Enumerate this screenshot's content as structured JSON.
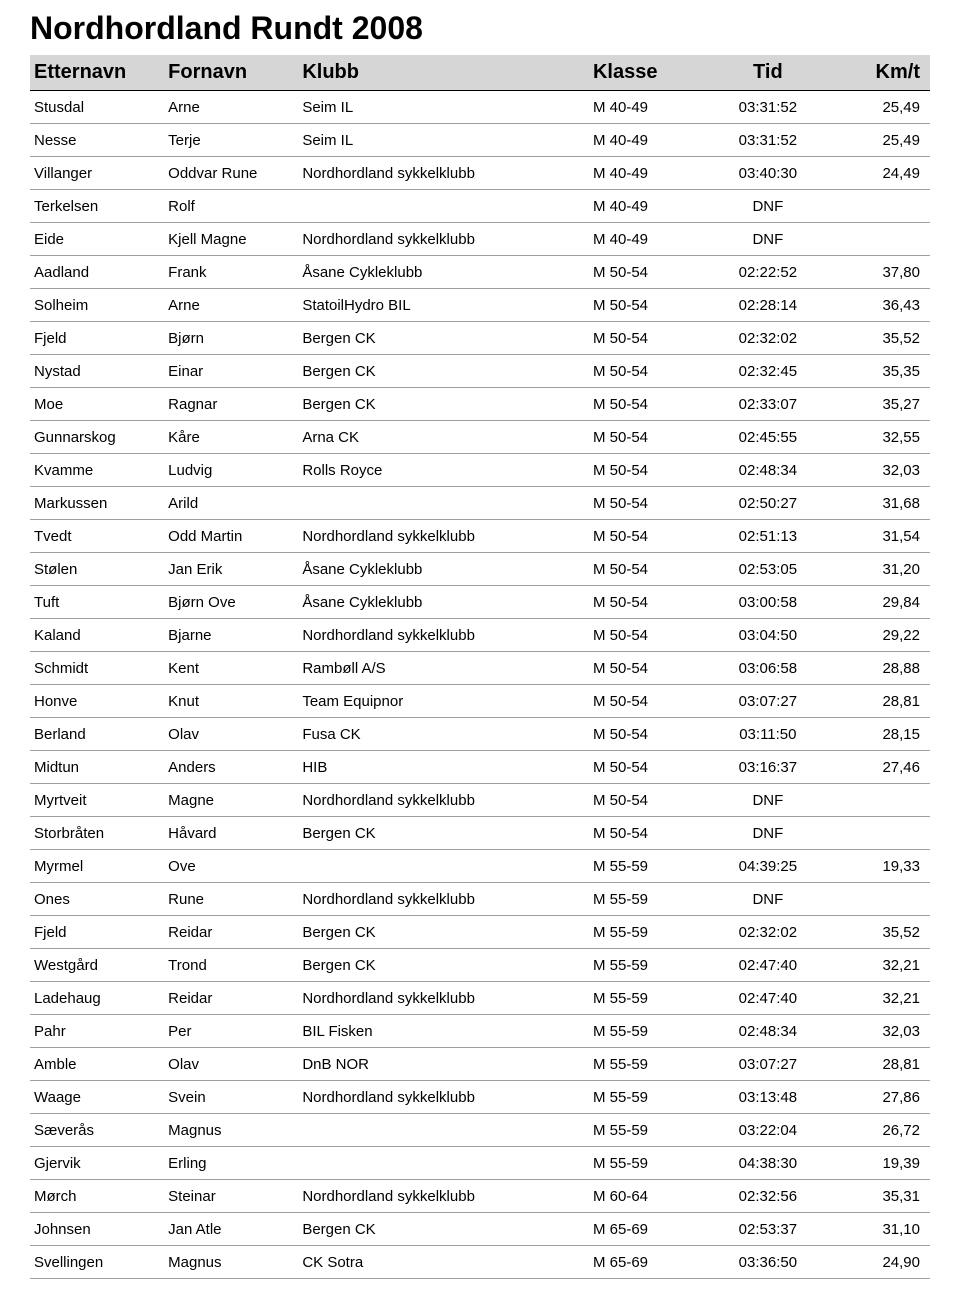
{
  "title": "Nordhordland Rundt 2008",
  "columns": [
    "Etternavn",
    "Fornavn",
    "Klubb",
    "Klasse",
    "Tid",
    "Km/t"
  ],
  "col_align": [
    "left",
    "left",
    "left",
    "left",
    "center",
    "right"
  ],
  "header_bg": "#d6d6d6",
  "row_border": "#a0a0a0",
  "rows": [
    [
      "Stusdal",
      "Arne",
      "Seim IL",
      "M 40-49",
      "03:31:52",
      "25,49"
    ],
    [
      "Nesse",
      "Terje",
      "Seim IL",
      "M 40-49",
      "03:31:52",
      "25,49"
    ],
    [
      "Villanger",
      "Oddvar Rune",
      "Nordhordland sykkelklubb",
      "M 40-49",
      "03:40:30",
      "24,49"
    ],
    [
      "Terkelsen",
      "Rolf",
      "",
      "M 40-49",
      "DNF",
      ""
    ],
    [
      "Eide",
      "Kjell Magne",
      "Nordhordland sykkelklubb",
      "M 40-49",
      "DNF",
      ""
    ],
    [
      "Aadland",
      "Frank",
      "Åsane Cykleklubb",
      "M 50-54",
      "02:22:52",
      "37,80"
    ],
    [
      "Solheim",
      "Arne",
      "StatoilHydro BIL",
      "M 50-54",
      "02:28:14",
      "36,43"
    ],
    [
      "Fjeld",
      "Bjørn",
      "Bergen CK",
      "M 50-54",
      "02:32:02",
      "35,52"
    ],
    [
      "Nystad",
      "Einar",
      "Bergen CK",
      "M 50-54",
      "02:32:45",
      "35,35"
    ],
    [
      "Moe",
      "Ragnar",
      "Bergen CK",
      "M 50-54",
      "02:33:07",
      "35,27"
    ],
    [
      "Gunnarskog",
      "Kåre",
      "Arna CK",
      "M 50-54",
      "02:45:55",
      "32,55"
    ],
    [
      "Kvamme",
      "Ludvig",
      "Rolls Royce",
      "M 50-54",
      "02:48:34",
      "32,03"
    ],
    [
      "Markussen",
      "Arild",
      "",
      "M 50-54",
      "02:50:27",
      "31,68"
    ],
    [
      "Tvedt",
      "Odd Martin",
      "Nordhordland sykkelklubb",
      "M 50-54",
      "02:51:13",
      "31,54"
    ],
    [
      "Stølen",
      "Jan Erik",
      "Åsane Cykleklubb",
      "M 50-54",
      "02:53:05",
      "31,20"
    ],
    [
      "Tuft",
      "Bjørn Ove",
      "Åsane Cykleklubb",
      "M 50-54",
      "03:00:58",
      "29,84"
    ],
    [
      "Kaland",
      "Bjarne",
      "Nordhordland sykkelklubb",
      "M 50-54",
      "03:04:50",
      "29,22"
    ],
    [
      "Schmidt",
      "Kent",
      "Rambøll A/S",
      "M 50-54",
      "03:06:58",
      "28,88"
    ],
    [
      "Honve",
      "Knut",
      "Team Equipnor",
      "M 50-54",
      "03:07:27",
      "28,81"
    ],
    [
      "Berland",
      "Olav",
      "Fusa CK",
      "M 50-54",
      "03:11:50",
      "28,15"
    ],
    [
      "Midtun",
      "Anders",
      "HIB",
      "M 50-54",
      "03:16:37",
      "27,46"
    ],
    [
      "Myrtveit",
      "Magne",
      "Nordhordland sykkelklubb",
      "M 50-54",
      "DNF",
      ""
    ],
    [
      "Storbråten",
      "Håvard",
      "Bergen CK",
      "M 50-54",
      "DNF",
      ""
    ],
    [
      "Myrmel",
      "Ove",
      "",
      "M 55-59",
      "04:39:25",
      "19,33"
    ],
    [
      "Ones",
      "Rune",
      "Nordhordland sykkelklubb",
      "M 55-59",
      "DNF",
      ""
    ],
    [
      "Fjeld",
      "Reidar",
      "Bergen CK",
      "M 55-59",
      "02:32:02",
      "35,52"
    ],
    [
      "Westgård",
      "Trond",
      "Bergen CK",
      "M 55-59",
      "02:47:40",
      "32,21"
    ],
    [
      "Ladehaug",
      "Reidar",
      "Nordhordland sykkelklubb",
      "M 55-59",
      "02:47:40",
      "32,21"
    ],
    [
      "Pahr",
      "Per",
      "BIL Fisken",
      "M 55-59",
      "02:48:34",
      "32,03"
    ],
    [
      "Amble",
      "Olav",
      "DnB NOR",
      "M 55-59",
      "03:07:27",
      "28,81"
    ],
    [
      "Waage",
      "Svein",
      "Nordhordland sykkelklubb",
      "M 55-59",
      "03:13:48",
      "27,86"
    ],
    [
      "Sæverås",
      "Magnus",
      "",
      "M 55-59",
      "03:22:04",
      "26,72"
    ],
    [
      "Gjervik",
      "Erling",
      "",
      "M 55-59",
      "04:38:30",
      "19,39"
    ],
    [
      "Mørch",
      "Steinar",
      "Nordhordland sykkelklubb",
      "M 60-64",
      "02:32:56",
      "35,31"
    ],
    [
      "Johnsen",
      "Jan Atle",
      "Bergen CK",
      "M 65-69",
      "02:53:37",
      "31,10"
    ],
    [
      "Svellingen",
      "Magnus",
      "CK Sotra",
      "M 65-69",
      "03:36:50",
      "24,90"
    ]
  ]
}
